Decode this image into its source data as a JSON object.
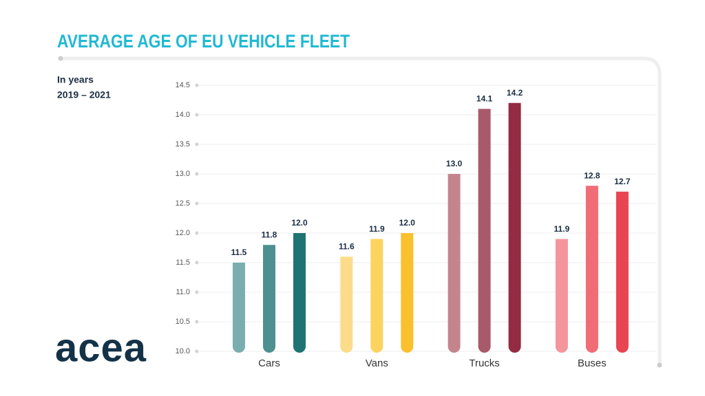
{
  "chart_data": {
    "type": "grouped_bar",
    "title": "AVERAGE AGE OF EU VEHICLE FLEET",
    "unit_label": "In years",
    "period": "2019 – 2021",
    "categories": [
      "Cars",
      "Vans",
      "Trucks",
      "Buses"
    ],
    "values": [
      [
        11.5,
        11.8,
        12.0
      ],
      [
        11.6,
        11.9,
        12.0
      ],
      [
        13.0,
        14.1,
        14.2
      ],
      [
        11.9,
        12.8,
        12.7
      ]
    ],
    "value_labels": [
      [
        "11.5",
        "11.8",
        "12.0"
      ],
      [
        "11.6",
        "11.9",
        "12.0"
      ],
      [
        "13.0",
        "14.1",
        "14.2"
      ],
      [
        "11.9",
        "12.8",
        "12.7"
      ]
    ],
    "colors": [
      [
        "#7aaeae",
        "#4e9090",
        "#1f7373"
      ],
      [
        "#fbdc8a",
        "#fcd35e",
        "#fbc02d"
      ],
      [
        "#c4848e",
        "#a85a6a",
        "#932b42"
      ],
      [
        "#f4959c",
        "#f06c76",
        "#e94452"
      ]
    ],
    "ylim": [
      10,
      14.5
    ],
    "yticks": [
      {
        "value": 10,
        "label": "10.0"
      },
      10.5,
      {
        "value": 11,
        "label": "11.0"
      },
      11.5,
      {
        "value": 12,
        "label": "12.0"
      },
      12.5,
      {
        "value": 13,
        "label": "13.0"
      },
      13.5,
      {
        "value": 14,
        "label": "14.0"
      },
      14.5
    ],
    "grid": true
  },
  "logo": "acea"
}
